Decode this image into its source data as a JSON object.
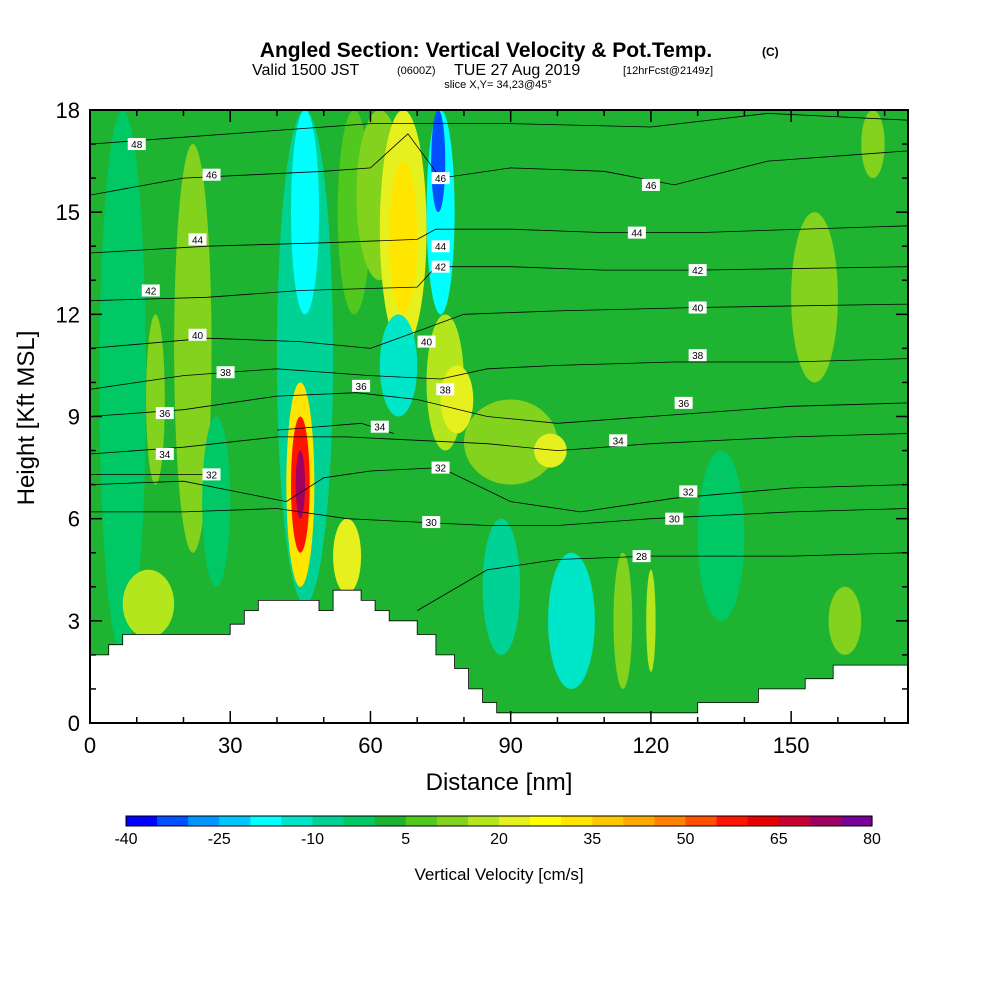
{
  "header": {
    "title_main": "Angled Section: Vertical Velocity & Pot.Temp.",
    "title_unit": "(C)",
    "valid_a": "Valid 1500 JST",
    "valid_b": "(0600Z)",
    "valid_c": "TUE 27 Aug 2019",
    "valid_d": "[12hrFcst@2149z]",
    "slice": "slice X,Y= 34,23@45°"
  },
  "chart_data": {
    "type": "heatmap",
    "xlabel": "Distance [nm]",
    "ylabel": "Height [Kft MSL]",
    "xlim": [
      0,
      175
    ],
    "ylim": [
      0,
      18
    ],
    "x_ticks": [
      0,
      30,
      60,
      90,
      120,
      150
    ],
    "y_ticks": [
      0,
      3,
      6,
      9,
      12,
      15,
      18
    ],
    "colorbar": {
      "label": "Vertical Velocity [cm/s]",
      "levels": [
        -40,
        -35,
        -30,
        -25,
        -20,
        -15,
        -10,
        -5,
        0,
        5,
        10,
        15,
        20,
        25,
        30,
        35,
        40,
        45,
        50,
        55,
        60,
        65,
        70,
        75,
        80
      ],
      "tick_labels": [
        "-40",
        "-25",
        "-10",
        "5",
        "20",
        "35",
        "50",
        "65",
        "80"
      ],
      "colors": [
        "#0000ff",
        "#0050ff",
        "#0096ff",
        "#00c8ff",
        "#00ffff",
        "#00e6c8",
        "#00d296",
        "#00c864",
        "#1eb432",
        "#50c81e",
        "#82d21e",
        "#b4e61e",
        "#e6f01e",
        "#ffff00",
        "#ffe600",
        "#ffc800",
        "#ffaa00",
        "#ff8200",
        "#ff5000",
        "#ff1400",
        "#e60000",
        "#c80032",
        "#a00064",
        "#780096"
      ]
    },
    "background_value": 3,
    "cells": [
      {
        "x": [
          0,
          175
        ],
        "y": [
          0,
          18
        ],
        "v": 3
      },
      {
        "x": [
          2,
          12
        ],
        "y": [
          2,
          18
        ],
        "v": -3
      },
      {
        "x": [
          18,
          26
        ],
        "y": [
          5,
          17
        ],
        "v": 10
      },
      {
        "x": [
          24,
          30
        ],
        "y": [
          4,
          9
        ],
        "v": -3
      },
      {
        "x": [
          7,
          18
        ],
        "y": [
          2.5,
          4.5
        ],
        "v": 15
      },
      {
        "x": [
          12,
          16
        ],
        "y": [
          7,
          12
        ],
        "v": 10
      },
      {
        "x": [
          40,
          52
        ],
        "y": [
          3.5,
          18
        ],
        "v": -8
      },
      {
        "x": [
          43,
          49
        ],
        "y": [
          12,
          18
        ],
        "v": -18
      },
      {
        "x": [
          53,
          60
        ],
        "y": [
          12,
          18
        ],
        "v": 8
      },
      {
        "x": [
          57,
          67
        ],
        "y": [
          13,
          18
        ],
        "v": 12
      },
      {
        "x": [
          62,
          72
        ],
        "y": [
          11,
          18
        ],
        "v": 22
      },
      {
        "x": [
          64,
          70
        ],
        "y": [
          12,
          16.5
        ],
        "v": 32
      },
      {
        "x": [
          72,
          78
        ],
        "y": [
          12,
          18
        ],
        "v": -20
      },
      {
        "x": [
          73,
          76
        ],
        "y": [
          15,
          18
        ],
        "v": -33
      },
      {
        "x": [
          72,
          80
        ],
        "y": [
          8,
          12
        ],
        "v": 15
      },
      {
        "x": [
          75,
          82
        ],
        "y": [
          8.5,
          10.5
        ],
        "v": 22
      },
      {
        "x": [
          62,
          70
        ],
        "y": [
          9,
          12
        ],
        "v": -12
      },
      {
        "x": [
          80,
          100
        ],
        "y": [
          7,
          9.5
        ],
        "v": 12
      },
      {
        "x": [
          95,
          102
        ],
        "y": [
          7.5,
          8.5
        ],
        "v": 20
      },
      {
        "x": [
          42,
          48
        ],
        "y": [
          4,
          10
        ],
        "v": 30
      },
      {
        "x": [
          43,
          47
        ],
        "y": [
          5,
          9
        ],
        "v": 55
      },
      {
        "x": [
          44,
          46
        ],
        "y": [
          6,
          8
        ],
        "v": 73
      },
      {
        "x": [
          52,
          58
        ],
        "y": [
          3.8,
          6
        ],
        "v": 22
      },
      {
        "x": [
          84,
          92
        ],
        "y": [
          2,
          6
        ],
        "v": -8
      },
      {
        "x": [
          98,
          108
        ],
        "y": [
          1,
          5
        ],
        "v": -12
      },
      {
        "x": [
          112,
          116
        ],
        "y": [
          1,
          5
        ],
        "v": 12
      },
      {
        "x": [
          119,
          121
        ],
        "y": [
          1.5,
          4.5
        ],
        "v": 18
      },
      {
        "x": [
          130,
          140
        ],
        "y": [
          3,
          8
        ],
        "v": -5
      },
      {
        "x": [
          150,
          160
        ],
        "y": [
          10,
          15
        ],
        "v": 10
      },
      {
        "x": [
          165,
          170
        ],
        "y": [
          16,
          18
        ],
        "v": 12
      },
      {
        "x": [
          158,
          165
        ],
        "y": [
          2,
          4
        ],
        "v": 10
      }
    ],
    "terrain": [
      [
        0,
        2
      ],
      [
        4,
        2
      ],
      [
        4,
        2.3
      ],
      [
        7,
        2.3
      ],
      [
        7,
        2.6
      ],
      [
        30,
        2.6
      ],
      [
        30,
        2.9
      ],
      [
        33,
        2.9
      ],
      [
        33,
        3.3
      ],
      [
        36,
        3.3
      ],
      [
        36,
        3.6
      ],
      [
        49,
        3.6
      ],
      [
        49,
        3.3
      ],
      [
        52,
        3.3
      ],
      [
        52,
        3.9
      ],
      [
        58,
        3.9
      ],
      [
        58,
        3.6
      ],
      [
        61,
        3.6
      ],
      [
        61,
        3.3
      ],
      [
        64,
        3.3
      ],
      [
        64,
        3.0
      ],
      [
        70,
        3.0
      ],
      [
        70,
        2.6
      ],
      [
        74,
        2.6
      ],
      [
        74,
        2.0
      ],
      [
        78,
        2.0
      ],
      [
        78,
        1.6
      ],
      [
        81,
        1.6
      ],
      [
        81,
        1.0
      ],
      [
        84,
        1.0
      ],
      [
        84,
        0.6
      ],
      [
        87,
        0.6
      ],
      [
        87,
        0.3
      ],
      [
        130,
        0.3
      ],
      [
        130,
        0.6
      ],
      [
        143,
        0.6
      ],
      [
        143,
        1.0
      ],
      [
        153,
        1.0
      ],
      [
        153,
        1.3
      ],
      [
        159,
        1.3
      ],
      [
        159,
        1.7
      ],
      [
        175,
        1.7
      ]
    ],
    "contours": [
      {
        "label": "28",
        "pts": [
          [
            70,
            3.3
          ],
          [
            85,
            4.5
          ],
          [
            100,
            4.8
          ],
          [
            120,
            4.9
          ],
          [
            150,
            4.9
          ],
          [
            175,
            5
          ]
        ],
        "label_at": [
          118,
          4.9
        ]
      },
      {
        "label": "30",
        "pts": [
          [
            0,
            6.2
          ],
          [
            20,
            6.2
          ],
          [
            40,
            6.3
          ],
          [
            55,
            6
          ],
          [
            70,
            5.9
          ],
          [
            85,
            5.8
          ],
          [
            100,
            5.8
          ],
          [
            120,
            6.0
          ],
          [
            150,
            6.2
          ],
          [
            175,
            6.3
          ]
        ],
        "label_at": [
          73,
          5.9
        ]
      },
      {
        "label": "32",
        "pts": [
          [
            0,
            7.0
          ],
          [
            20,
            7.1
          ],
          [
            42,
            6.5
          ],
          [
            50,
            7.2
          ],
          [
            60,
            7.4
          ],
          [
            75,
            7.5
          ],
          [
            90,
            6.5
          ],
          [
            105,
            6.2
          ],
          [
            125,
            6.6
          ],
          [
            150,
            6.9
          ],
          [
            175,
            7.0
          ]
        ],
        "label_at": [
          75,
          7.5
        ]
      },
      {
        "label": "32",
        "pts": [
          [
            0,
            7.3
          ],
          [
            25,
            7.3
          ]
        ],
        "label_at": [
          26,
          7.3
        ]
      },
      {
        "label": "34",
        "pts": [
          [
            0,
            7.9
          ],
          [
            20,
            8.1
          ],
          [
            40,
            8.4
          ],
          [
            55,
            8.4
          ],
          [
            70,
            8.3
          ],
          [
            85,
            8.2
          ],
          [
            100,
            8.0
          ],
          [
            120,
            8.2
          ],
          [
            150,
            8.4
          ],
          [
            175,
            8.5
          ]
        ],
        "label_at": [
          113,
          8.3
        ]
      },
      {
        "label": "34",
        "pts": [
          [
            40,
            8.6
          ],
          [
            58,
            8.8
          ],
          [
            65,
            8.5
          ]
        ],
        "label_at": [
          62,
          8.7
        ]
      },
      {
        "label": "36",
        "pts": [
          [
            0,
            9.0
          ],
          [
            20,
            9.2
          ],
          [
            40,
            9.6
          ],
          [
            57,
            9.7
          ],
          [
            70,
            9.5
          ],
          [
            85,
            9.0
          ],
          [
            100,
            8.8
          ],
          [
            120,
            9.0
          ],
          [
            150,
            9.3
          ],
          [
            175,
            9.4
          ]
        ],
        "label_at": [
          127,
          9.4
        ]
      },
      {
        "label": "38",
        "pts": [
          [
            0,
            9.8
          ],
          [
            20,
            10.2
          ],
          [
            40,
            10.4
          ],
          [
            60,
            10.2
          ],
          [
            75,
            10.1
          ],
          [
            85,
            10.4
          ],
          [
            100,
            10.5
          ],
          [
            125,
            10.6
          ],
          [
            150,
            10.6
          ],
          [
            175,
            10.7
          ]
        ],
        "label_at": [
          130,
          10.8
        ]
      },
      {
        "label": "40",
        "pts": [
          [
            0,
            11.0
          ],
          [
            25,
            11.3
          ],
          [
            45,
            11.2
          ],
          [
            60,
            11.0
          ],
          [
            72,
            11.6
          ],
          [
            80,
            12
          ],
          [
            100,
            12.1
          ],
          [
            130,
            12.2
          ],
          [
            175,
            12.3
          ]
        ],
        "label_at": [
          130,
          12.2
        ]
      },
      {
        "label": "42",
        "pts": [
          [
            0,
            12.4
          ],
          [
            25,
            12.5
          ],
          [
            45,
            12.7
          ],
          [
            70,
            12.8
          ],
          [
            74,
            13.4
          ],
          [
            90,
            13.4
          ],
          [
            110,
            13.3
          ],
          [
            130,
            13.3
          ],
          [
            175,
            13.4
          ]
        ],
        "label_at": [
          130,
          13.3
        ]
      },
      {
        "label": "44",
        "pts": [
          [
            0,
            13.8
          ],
          [
            25,
            14.0
          ],
          [
            50,
            14.1
          ],
          [
            70,
            14.2
          ],
          [
            74,
            14.5
          ],
          [
            90,
            14.5
          ],
          [
            110,
            14.4
          ],
          [
            130,
            14.4
          ],
          [
            175,
            14.6
          ]
        ],
        "label_at": [
          117,
          14.4
        ]
      },
      {
        "label": "46",
        "pts": [
          [
            0,
            15.5
          ],
          [
            20,
            16
          ],
          [
            35,
            16.1
          ],
          [
            50,
            16.2
          ],
          [
            60,
            16.3
          ],
          [
            68,
            17.3
          ],
          [
            75,
            16
          ],
          [
            90,
            16.3
          ],
          [
            110,
            16.2
          ],
          [
            125,
            15.8
          ],
          [
            145,
            16.5
          ],
          [
            175,
            16.8
          ]
        ],
        "label_at": [
          120,
          15.8
        ]
      },
      {
        "label": "48",
        "pts": [
          [
            0,
            17.0
          ],
          [
            20,
            17.2
          ],
          [
            40,
            17.4
          ],
          [
            60,
            17.6
          ],
          [
            90,
            17.6
          ],
          [
            120,
            17.5
          ],
          [
            145,
            17.9
          ],
          [
            175,
            17.7
          ]
        ],
        "label_at": [
          10,
          17.0
        ]
      }
    ],
    "extra_labels": [
      {
        "label": "46",
        "at": [
          26,
          16.1
        ]
      },
      {
        "label": "46",
        "at": [
          75,
          16.0
        ]
      },
      {
        "label": "44",
        "at": [
          23,
          14.2
        ]
      },
      {
        "label": "44",
        "at": [
          75,
          14.0
        ]
      },
      {
        "label": "42",
        "at": [
          13,
          12.7
        ]
      },
      {
        "label": "42",
        "at": [
          75,
          13.4
        ]
      },
      {
        "label": "40",
        "at": [
          23,
          11.4
        ]
      },
      {
        "label": "40",
        "at": [
          72,
          11.2
        ]
      },
      {
        "label": "38",
        "at": [
          29,
          10.3
        ]
      },
      {
        "label": "38",
        "at": [
          76,
          9.8
        ]
      },
      {
        "label": "36",
        "at": [
          16,
          9.1
        ]
      },
      {
        "label": "36",
        "at": [
          58,
          9.9
        ]
      },
      {
        "label": "34",
        "at": [
          16,
          7.9
        ]
      },
      {
        "label": "32",
        "at": [
          128,
          6.8
        ]
      },
      {
        "label": "30",
        "at": [
          125,
          6.0
        ]
      }
    ]
  }
}
